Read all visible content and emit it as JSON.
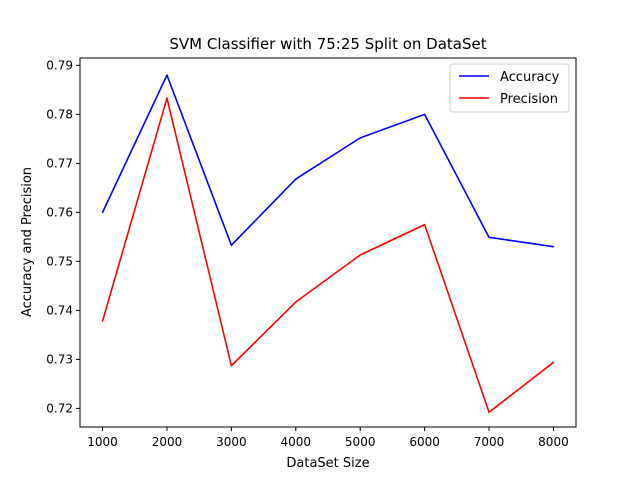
{
  "chart_data": {
    "type": "line",
    "title": "SVM Classifier with 75:25 Split on DataSet",
    "xlabel": "DataSet Size",
    "ylabel": "Accuracy and Precision",
    "x": [
      1000,
      2000,
      3000,
      4000,
      5000,
      6000,
      7000,
      8000
    ],
    "xticks": [
      "1000",
      "2000",
      "3000",
      "4000",
      "5000",
      "6000",
      "7000",
      "8000"
    ],
    "yticks": [
      "0.72",
      "0.73",
      "0.74",
      "0.75",
      "0.76",
      "0.77",
      "0.78",
      "0.79"
    ],
    "xlim": [
      650,
      8350
    ],
    "ylim": [
      0.7162,
      0.7915
    ],
    "grid": false,
    "legend_position": "top-right",
    "series": [
      {
        "name": "Accuracy",
        "color": "#0000ff",
        "values": [
          0.76,
          0.788,
          0.7533,
          0.7668,
          0.7752,
          0.78,
          0.7549,
          0.753
        ]
      },
      {
        "name": "Precision",
        "color": "#ff0000",
        "values": [
          0.7378,
          0.7833,
          0.7287,
          0.7417,
          0.7513,
          0.7575,
          0.7192,
          0.7294
        ]
      }
    ]
  }
}
